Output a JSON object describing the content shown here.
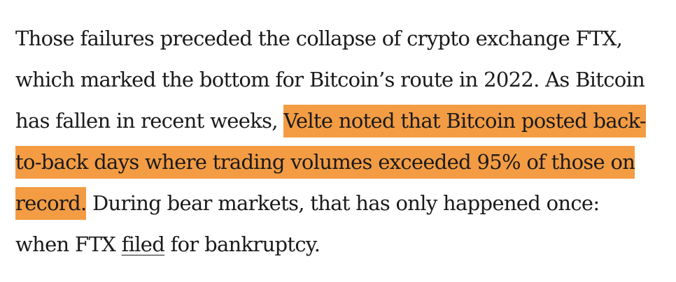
{
  "paragraph": {
    "line1": "Those failures preceded the collapse of crypto exchange FTX,",
    "line2": "which marked the bottom for Bitcoin’s route in 2022. As Bitcoin",
    "line3_plain": "has fallen in recent weeks, ",
    "line3_highlight": "Velte noted that Bitcoin posted back-",
    "line4_highlight": "to-back days where trading volumes exceeded 95% of those on",
    "line5_highlight": "record.",
    "line5_plain": " During bear markets, that has only happened once:",
    "line6_before_link": "when FTX ",
    "link_text": "filed",
    "line6_after_link": " for bankruptcy."
  },
  "colors": {
    "highlight": "#f39c44",
    "text": "#1a1a1a",
    "background": "#ffffff"
  }
}
